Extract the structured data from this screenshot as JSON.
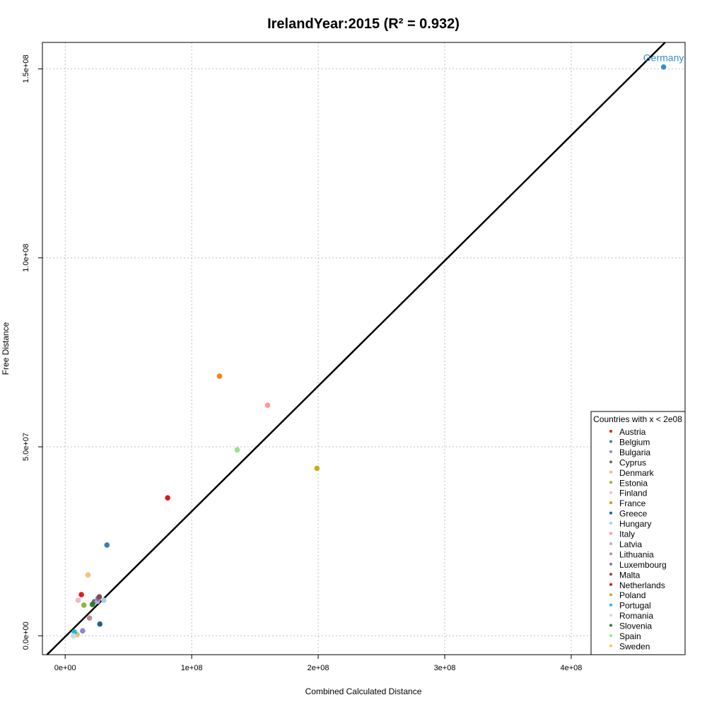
{
  "chart_data": {
    "type": "scatter",
    "title": "IrelandYear:2015 (R² = 0.932)",
    "xlabel": "Combined Calculated Distance",
    "ylabel": "Free Distance",
    "xlim": [
      -18000000,
      490000000
    ],
    "ylim": [
      -5000000,
      157000000
    ],
    "x_ticks": [
      0,
      100000000,
      200000000,
      300000000,
      400000000
    ],
    "x_tick_labels": [
      "0e+00",
      "1e+08",
      "2e+08",
      "3e+08",
      "4e+08"
    ],
    "y_ticks": [
      0,
      50000000,
      100000000,
      150000000
    ],
    "y_tick_labels": [
      "0.0e+00",
      "5.0e+07",
      "1.0e+08",
      "1.5e+08"
    ],
    "grid": true,
    "fit_line": {
      "slope": 0.3316,
      "intercept": -240000
    },
    "legend": {
      "title": "Countries with x < 2e08",
      "placement": "bottom-right"
    },
    "annotations": [
      {
        "text": "Germany",
        "x": 473000000,
        "y": 150500000,
        "color": "#3a8fc8"
      }
    ],
    "series": [
      {
        "name": "Austria",
        "color": "#e41a1c",
        "x": 12800000,
        "y": 10900000
      },
      {
        "name": "Belgium",
        "color": "#377eb8",
        "x": 33000000,
        "y": 24000000
      },
      {
        "name": "Bulgaria",
        "color": "#8f86d1",
        "x": 13800000,
        "y": 1300000
      },
      {
        "name": "Cyprus",
        "color": "#696969",
        "x": 23000000,
        "y": 9000000
      },
      {
        "name": "Denmark",
        "color": "#e6c070",
        "x": 9500000,
        "y": 300000
      },
      {
        "name": "Estonia",
        "color": "#8fb542",
        "x": 14800000,
        "y": 8100000
      },
      {
        "name": "Finland",
        "color": "#f4b8c8",
        "x": 10200000,
        "y": 9400000
      },
      {
        "name": "France",
        "color": "#ff7f00",
        "x": 122000000,
        "y": 68700000
      },
      {
        "name": "Greece",
        "color": "#1f5f8b",
        "x": 27400000,
        "y": 3100000
      },
      {
        "name": "Hungary",
        "color": "#a6cee3",
        "x": 30500000,
        "y": 9400000
      },
      {
        "name": "Italy",
        "color": "#fb9a99",
        "x": 160000000,
        "y": 61000000
      },
      {
        "name": "Latvia",
        "color": "#b2a9e0",
        "x": 25500000,
        "y": 9100000
      },
      {
        "name": "Lithuania",
        "color": "#bc8f8f",
        "x": 19200000,
        "y": 4700000
      },
      {
        "name": "Luxembourg",
        "color": "#8e6fa8",
        "x": 26000000,
        "y": 9900000
      },
      {
        "name": "Malta",
        "color": "#8b4a4a",
        "x": 27000000,
        "y": 10300000
      },
      {
        "name": "Netherlands",
        "color": "#d7191c",
        "x": 81000000,
        "y": 36500000
      },
      {
        "name": "Poland",
        "color": "#c7b015",
        "x": 199000000,
        "y": 44300000
      },
      {
        "name": "Portugal",
        "color": "#17becf",
        "x": 7200000,
        "y": 1000000
      },
      {
        "name": "Romania",
        "color": "#c6dbef",
        "x": 6500000,
        "y": 0
      },
      {
        "name": "Slovenia",
        "color": "#2e7d32",
        "x": 21500000,
        "y": 8300000
      },
      {
        "name": "Spain",
        "color": "#98df8a",
        "x": 136000000,
        "y": 49200000
      },
      {
        "name": "Sweden",
        "color": "#fdbf6f",
        "x": 18000000,
        "y": 16100000
      },
      {
        "name": "",
        "color": "#3a8fc8",
        "x": 473000000,
        "y": 150500000
      }
    ]
  }
}
